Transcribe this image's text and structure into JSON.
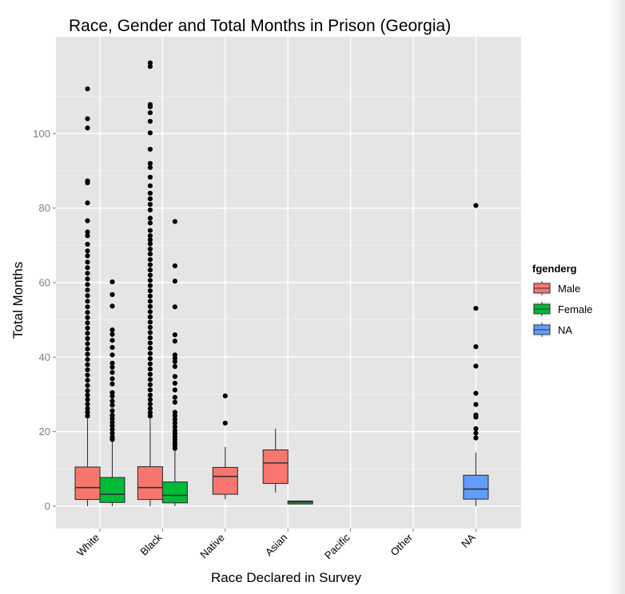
{
  "chart_data": {
    "type": "boxplot",
    "title": "Race, Gender and Total Months in Prison (Georgia)",
    "xlabel": "Race Declared in Survey",
    "ylabel": "Total Months",
    "categories": [
      "White",
      "Black",
      "Native",
      "Asian",
      "Pacific",
      "Other",
      "NA"
    ],
    "ylim": [
      -6,
      126
    ],
    "yticks": [
      0,
      20,
      40,
      60,
      80,
      100
    ],
    "grid": true,
    "legend": {
      "title": "fgenderg",
      "placement": "right",
      "entries": [
        {
          "name": "Male",
          "color": "#F8766D"
        },
        {
          "name": "Female",
          "color": "#00BA38"
        },
        {
          "name": "NA",
          "color": "#619CFF"
        }
      ]
    },
    "boxes": [
      {
        "category": "White",
        "group": "Male",
        "q1": 1.8,
        "median": 5,
        "q3": 10.5,
        "whisker_low": 0,
        "whisker_high": 23.5,
        "outliers": [
          112,
          104,
          101.5,
          87.3,
          86.8,
          81.4,
          76.6,
          73.6,
          72.6,
          70.3,
          68.5,
          67.2,
          65.5,
          64,
          62.5,
          61,
          59.5,
          58,
          56.5,
          55,
          53.5,
          52,
          50.6,
          49.2,
          47.8,
          46.4,
          45,
          43.6,
          42.2,
          40.8,
          39.4,
          38,
          36.6,
          35.2,
          33.8,
          32.4,
          31,
          29.8,
          28.6,
          27.4,
          26.2,
          25.2,
          24.2
        ]
      },
      {
        "category": "White",
        "group": "Female",
        "q1": 1,
        "median": 3.2,
        "q3": 7.7,
        "whisker_low": 0,
        "whisker_high": 17.5,
        "outliers": [
          60.2,
          56.8,
          53.7,
          47.3,
          46.1,
          44.5,
          42.6,
          40.6,
          38.4,
          37.3,
          35.9,
          34.2,
          32.8,
          30.5,
          29.5,
          28.2,
          27.1,
          25.6,
          24.4,
          23.5,
          22.5,
          21.6,
          20.6,
          19.6,
          18.6,
          17.9
        ]
      },
      {
        "category": "Black",
        "group": "Male",
        "q1": 1.8,
        "median": 5,
        "q3": 10.6,
        "whisker_low": 0,
        "whisker_high": 23.5,
        "outliers": [
          119,
          118,
          107.8,
          107.2,
          105.6,
          103.3,
          100.2,
          95.8,
          92,
          90.9,
          88.3,
          86,
          84,
          82.5,
          81,
          79.5,
          77.3,
          76,
          74,
          72.6,
          71.5,
          70.4,
          69,
          67.7,
          66.2,
          64.8,
          63.4,
          62,
          60.6,
          59.2,
          57.8,
          56.4,
          55,
          53.6,
          52.2,
          50.8,
          49.4,
          48,
          46.6,
          45.2,
          43.8,
          42.4,
          41,
          39.6,
          38.2,
          36.8,
          35.4,
          34,
          32.6,
          31.2,
          29.8,
          28.6,
          27.4,
          26.2,
          25.1,
          24.2
        ]
      },
      {
        "category": "Black",
        "group": "Female",
        "q1": 0.9,
        "median": 2.9,
        "q3": 6.5,
        "whisker_low": 0,
        "whisker_high": 14.8,
        "outliers": [
          76.4,
          64.5,
          60.4,
          53.5,
          46,
          44.3,
          40.6,
          39.7,
          38.8,
          37.5,
          34.8,
          33,
          31.2,
          29.2,
          27.9,
          25.2,
          24.3,
          23.3,
          22.3,
          21.3,
          20.3,
          19.5,
          18.7,
          17.9,
          17.1,
          16.3,
          15.5
        ]
      },
      {
        "category": "Native",
        "group": "Male",
        "q1": 3.2,
        "median": 8,
        "q3": 10.4,
        "whisker_low": 1.8,
        "whisker_high": 15.9,
        "outliers": [
          29.6,
          22.3
        ]
      },
      {
        "category": "Asian",
        "group": "Male",
        "q1": 6.1,
        "median": 11.6,
        "q3": 15.1,
        "whisker_low": 3.7,
        "whisker_high": 20.8,
        "outliers": []
      },
      {
        "category": "Asian",
        "group": "Female",
        "q1": 0.6,
        "median": 1.1,
        "q3": 1.4,
        "whisker_low": 0.6,
        "whisker_high": 1.4,
        "outliers": []
      },
      {
        "category": "NA",
        "group": "NA",
        "q1": 1.9,
        "median": 4.6,
        "q3": 8.3,
        "whisker_low": 0,
        "whisker_high": 14.4,
        "outliers": [
          80.7,
          53.1,
          42.8,
          37.6,
          30.3,
          27.3,
          24.5,
          23.9,
          20.8,
          19.6,
          18.3
        ]
      }
    ]
  }
}
